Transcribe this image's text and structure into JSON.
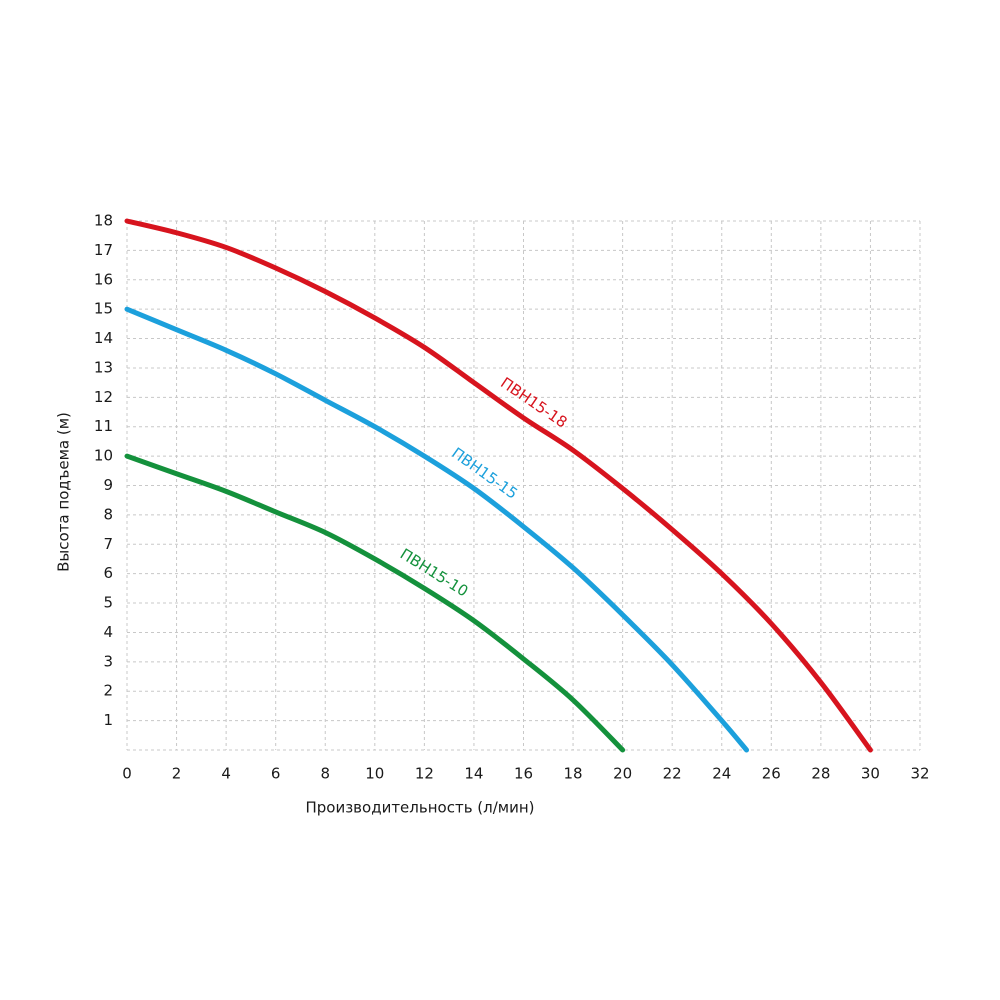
{
  "chart_data": {
    "type": "line",
    "xlabel": "Производительность (л/мин)",
    "ylabel": "Высота подъема (м)",
    "xlim": [
      0,
      32
    ],
    "xticks": [
      0,
      2,
      4,
      6,
      8,
      10,
      12,
      14,
      16,
      18,
      20,
      22,
      24,
      26,
      28,
      30,
      32
    ],
    "ylim": [
      0,
      18
    ],
    "yticks": [
      1,
      2,
      3,
      4,
      5,
      6,
      7,
      8,
      9,
      10,
      11,
      12,
      13,
      14,
      15,
      16,
      17,
      18
    ],
    "grid": true,
    "series": [
      {
        "name": "ПВН15-18",
        "color": "#d7141e",
        "x": [
          0,
          2,
          4,
          6,
          8,
          10,
          12,
          14,
          16,
          18,
          20,
          22,
          24,
          26,
          28,
          30
        ],
        "values": [
          18,
          17.6,
          17.1,
          16.4,
          15.6,
          14.7,
          13.7,
          12.5,
          11.3,
          10.2,
          8.9,
          7.5,
          6.0,
          4.3,
          2.3,
          0
        ]
      },
      {
        "name": "ПВН15-15",
        "color": "#1ca0dc",
        "x": [
          0,
          2,
          4,
          6,
          8,
          10,
          12,
          14,
          16,
          18,
          20,
          22,
          24,
          25
        ],
        "values": [
          15,
          14.3,
          13.6,
          12.8,
          11.9,
          11.0,
          10.0,
          8.9,
          7.6,
          6.2,
          4.6,
          2.9,
          1.0,
          0
        ]
      },
      {
        "name": "ПВН15-10",
        "color": "#14913c",
        "x": [
          0,
          2,
          4,
          6,
          8,
          10,
          12,
          14,
          16,
          18,
          20
        ],
        "values": [
          10,
          9.4,
          8.8,
          8.1,
          7.4,
          6.5,
          5.5,
          4.4,
          3.1,
          1.7,
          0
        ]
      }
    ]
  }
}
